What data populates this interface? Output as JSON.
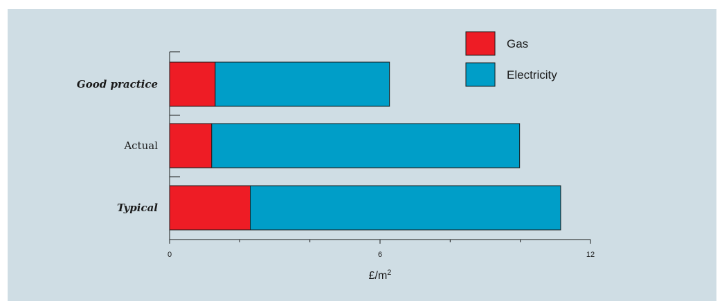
{
  "chart_data": {
    "type": "bar",
    "orientation": "horizontal",
    "stacked": true,
    "categories": [
      "Good practice",
      "Actual",
      "Typical"
    ],
    "emphasized_categories": [
      "Good practice",
      "Typical"
    ],
    "series": [
      {
        "name": "Gas",
        "color": "#ee1c25",
        "values": [
          1.3,
          1.2,
          2.3
        ]
      },
      {
        "name": "Electricity",
        "color": "#009ec8",
        "values": [
          4.97,
          8.78,
          8.85
        ]
      }
    ],
    "xlim": [
      0,
      12
    ],
    "x_tick_labels": [
      "0",
      "6",
      "12"
    ],
    "x_minor_ticks": [
      2,
      4,
      8,
      10
    ],
    "xlabel_base": "£/m",
    "xlabel_superscript": "2",
    "ylabel": "",
    "title": "",
    "grid": false,
    "legend_position": "top-right",
    "background_color": "#cfdde4"
  }
}
